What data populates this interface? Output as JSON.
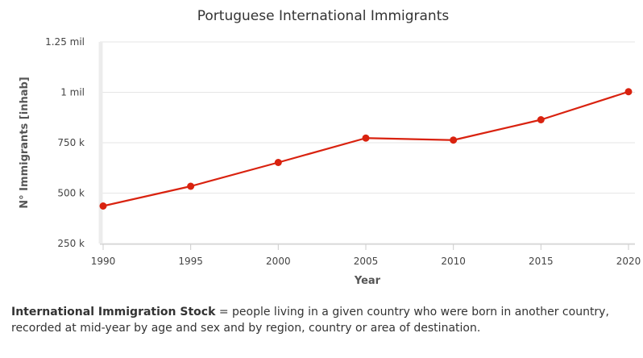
{
  "chart_data": {
    "type": "line",
    "title": "Portuguese International Immigrants",
    "xlabel": "Year",
    "ylabel": "N° Immigrants [inhab]",
    "x": [
      1990,
      1995,
      2000,
      2005,
      2010,
      2015,
      2020
    ],
    "series": [
      {
        "values": [
          436000,
          534000,
          652000,
          773000,
          763000,
          864000,
          1003000
        ],
        "color": "#d9220f"
      }
    ],
    "xlim": [
      1990,
      2020
    ],
    "ylim": [
      250000,
      1250000
    ],
    "x_ticks": [
      "1990",
      "1995",
      "2000",
      "2005",
      "2010",
      "2015",
      "2020"
    ],
    "y_ticks": [
      {
        "value": 250000,
        "label": "250 k"
      },
      {
        "value": 500000,
        "label": "500 k"
      },
      {
        "value": 750000,
        "label": "750 k"
      },
      {
        "value": 1000000,
        "label": "1 mil"
      },
      {
        "value": 1250000,
        "label": "1.25 mil"
      }
    ],
    "grid": true,
    "legend": "none"
  },
  "caption": {
    "term": "International Immigration Stock",
    "text": " = people living in a given country who were born in another country, recorded at mid-year by age and sex and by region, country or area of destination."
  }
}
